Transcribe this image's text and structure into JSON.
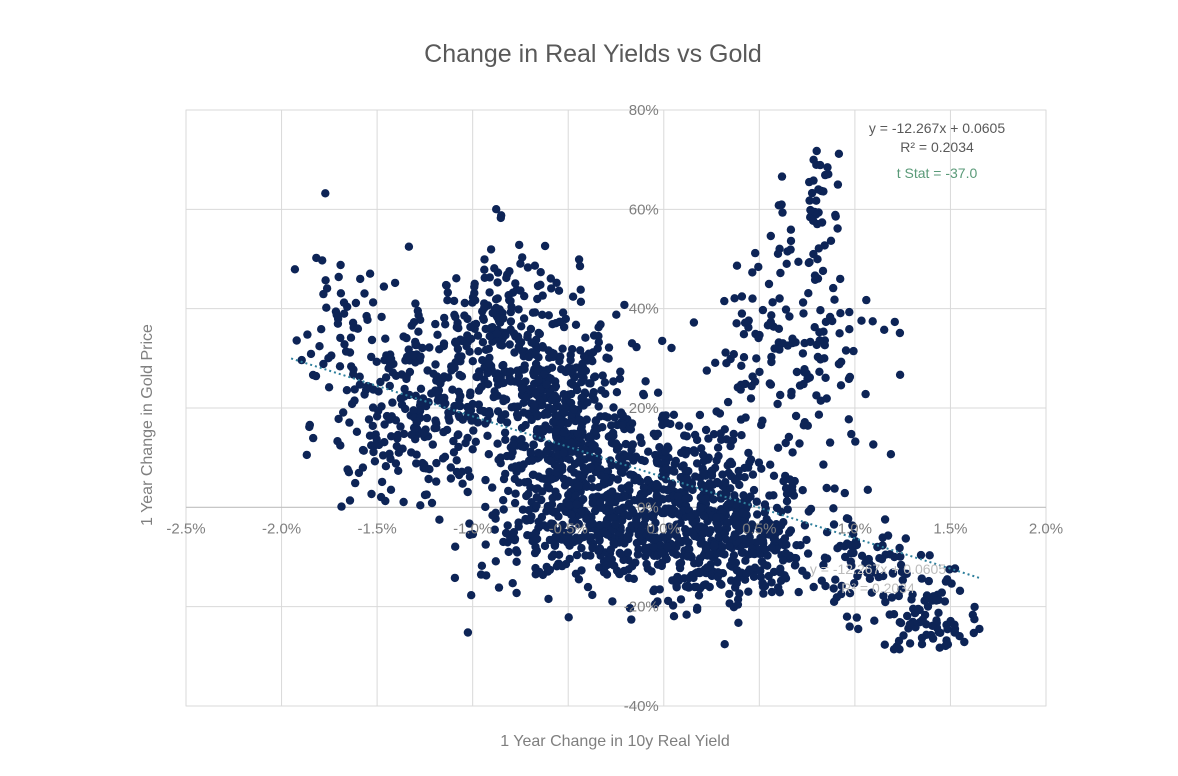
{
  "chart_data": {
    "type": "scatter",
    "title": "Change in Real Yields vs Gold",
    "xlabel": "1 Year Change in 10y  Real Yield",
    "ylabel": "1 Year Change in Gold Price",
    "xlim": [
      -0.025,
      0.02
    ],
    "ylim": [
      -0.4,
      0.8
    ],
    "x_ticks": [
      -0.025,
      -0.02,
      -0.015,
      -0.01,
      -0.005,
      0,
      0.005,
      0.01,
      0.015,
      0.02
    ],
    "x_tick_labels": [
      "-2.5%",
      "-2.0%",
      "-1.5%",
      "-1.0%",
      "-0.5%",
      "0.0%",
      "0.5%",
      "1.0%",
      "1.5%",
      "2.0%"
    ],
    "y_ticks": [
      -0.4,
      -0.2,
      0,
      0.2,
      0.4,
      0.6,
      0.8
    ],
    "y_tick_labels": [
      "-40%",
      "-20%",
      "0%",
      "20%",
      "40%",
      "60%",
      "80%"
    ],
    "grid": true,
    "legend": "none",
    "marker_color": "#0d2456",
    "trendline": {
      "style": "dotted",
      "color": "#2e7f9c",
      "equation": "y = -12.267x + 0.0605",
      "r_squared": "R² = 0.2034",
      "t_stat": "t Stat = -37.0",
      "x_range": [
        -0.0195,
        0.0166
      ],
      "slope": -12.267,
      "intercept": 0.0605
    },
    "ghost_labels": [
      "y = -12.267x + 0.0605",
      "R² = 0.2034"
    ],
    "point_count": 2400,
    "point_clusters": [
      {
        "cx": -0.0085,
        "cy": 0.33,
        "sx": 0.002,
        "sy": 0.1,
        "weight": 14
      },
      {
        "cx": -0.013,
        "cy": 0.19,
        "sx": 0.0022,
        "sy": 0.1,
        "weight": 10
      },
      {
        "cx": -0.0165,
        "cy": 0.33,
        "sx": 0.0018,
        "sy": 0.1,
        "weight": 3
      },
      {
        "cx": -0.005,
        "cy": 0.16,
        "sx": 0.0018,
        "sy": 0.09,
        "weight": 20
      },
      {
        "cx": -0.0035,
        "cy": -0.04,
        "sx": 0.003,
        "sy": 0.06,
        "weight": 16
      },
      {
        "cx": 0.0015,
        "cy": 0.0,
        "sx": 0.003,
        "sy": 0.09,
        "weight": 24
      },
      {
        "cx": 0.004,
        "cy": -0.1,
        "sx": 0.002,
        "sy": 0.05,
        "weight": 8
      },
      {
        "cx": 0.0065,
        "cy": 0.33,
        "sx": 0.0025,
        "sy": 0.1,
        "weight": 7
      },
      {
        "cx": 0.008,
        "cy": 0.6,
        "sx": 0.0008,
        "sy": 0.07,
        "weight": 2
      },
      {
        "cx": 0.0115,
        "cy": -0.13,
        "sx": 0.002,
        "sy": 0.05,
        "weight": 4
      },
      {
        "cx": 0.014,
        "cy": -0.25,
        "sx": 0.0015,
        "sy": 0.04,
        "weight": 4
      }
    ]
  }
}
